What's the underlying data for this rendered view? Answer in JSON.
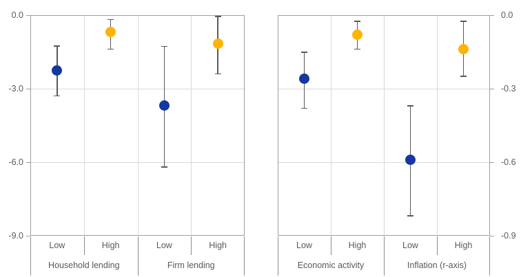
{
  "chart_data": {
    "type": "scatter",
    "subtype": "point-estimates-with-error-bars",
    "title": "",
    "grid": true,
    "colors": {
      "blue_point": "#15379E",
      "yellow_point": "#FFB400",
      "error_bar": "#595959",
      "frame": "#9E9E9E",
      "gridline": "#D9D9D9",
      "axis_label": "#595959",
      "divider": "#8C8C8C",
      "background": "#FFFFFF"
    },
    "panels": [
      {
        "name": "left-panel",
        "axis_side": "left",
        "ylim": [
          -9.0,
          0.0
        ],
        "yticks": [
          0,
          -3,
          -6,
          -9
        ],
        "ytick_labels": [
          "0.0",
          "-3.0",
          "-6.0",
          "-9.0"
        ],
        "groups": [
          {
            "label": "Household lending",
            "categories": [
              "Low",
              "High"
            ]
          },
          {
            "label": "Firm lending",
            "categories": [
              "Low",
              "High"
            ]
          }
        ],
        "points": [
          {
            "group": "Household lending",
            "category": "Low",
            "value": -2.25,
            "ci_high": -1.25,
            "ci_low": -3.3,
            "color": "blue"
          },
          {
            "group": "Household lending",
            "category": "High",
            "value": -0.7,
            "ci_high": -0.17,
            "ci_low": -1.4,
            "color": "yellow"
          },
          {
            "group": "Firm lending",
            "category": "Low",
            "value": -3.7,
            "ci_high": -1.27,
            "ci_low": -6.2,
            "color": "blue"
          },
          {
            "group": "Firm lending",
            "category": "High",
            "value": -1.15,
            "ci_high": -0.05,
            "ci_low": -2.4,
            "color": "yellow"
          }
        ]
      },
      {
        "name": "right-panel",
        "axis_side": "right",
        "ylim": [
          -0.9,
          0.0
        ],
        "yticks": [
          0,
          -0.3,
          -0.6,
          -0.9
        ],
        "ytick_labels": [
          "0.0",
          "-0.3",
          "-0.6",
          "-0.9"
        ],
        "groups": [
          {
            "label": "Economic activity",
            "categories": [
              "Low",
              "High"
            ]
          },
          {
            "label": "Inflation (r-axis)",
            "categories": [
              "Low",
              "High"
            ]
          }
        ],
        "points": [
          {
            "group": "Economic activity",
            "category": "Low",
            "value": -0.26,
            "ci_high": -0.15,
            "ci_low": -0.38,
            "color": "blue"
          },
          {
            "group": "Economic activity",
            "category": "High",
            "value": -0.08,
            "ci_high": -0.025,
            "ci_low": -0.14,
            "color": "yellow"
          },
          {
            "group": "Inflation (r-axis)",
            "category": "Low",
            "value": -0.59,
            "ci_high": -0.37,
            "ci_low": -0.82,
            "color": "blue"
          },
          {
            "group": "Inflation (r-axis)",
            "category": "High",
            "value": -0.14,
            "ci_high": -0.025,
            "ci_low": -0.25,
            "color": "yellow"
          }
        ]
      }
    ]
  }
}
